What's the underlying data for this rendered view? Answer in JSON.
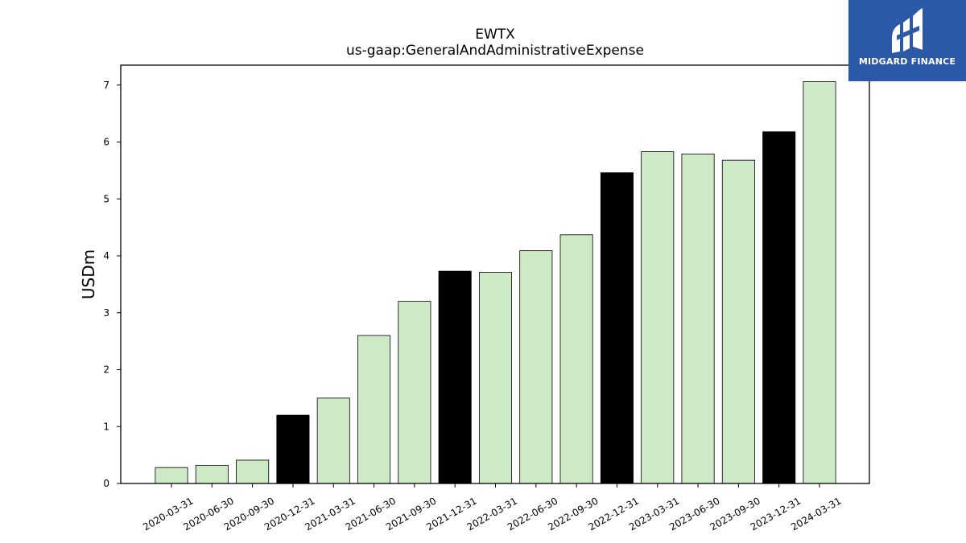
{
  "chart_data": {
    "type": "bar",
    "title": "EWTX",
    "subtitle": "us-gaap:GeneralAndAdministrativeExpense",
    "xlabel": "",
    "ylabel": "USDm",
    "ylim": [
      0,
      7.35
    ],
    "yticks": [
      0,
      1,
      2,
      3,
      4,
      5,
      6,
      7
    ],
    "grid": false,
    "categories": [
      "2020-03-31",
      "2020-06-30",
      "2020-09-30",
      "2020-12-31",
      "2021-03-31",
      "2021-06-30",
      "2021-09-30",
      "2021-12-31",
      "2022-03-31",
      "2022-06-30",
      "2022-09-30",
      "2022-12-31",
      "2023-03-31",
      "2023-06-30",
      "2023-09-30",
      "2023-12-31",
      "2024-03-31"
    ],
    "values": [
      0.28,
      0.32,
      0.41,
      1.2,
      1.5,
      2.6,
      3.2,
      3.73,
      3.71,
      4.09,
      4.37,
      5.46,
      5.83,
      5.79,
      5.68,
      6.18,
      7.06
    ],
    "bar_colors": [
      "#cde9c6",
      "#cde9c6",
      "#cde9c6",
      "#000000",
      "#cde9c6",
      "#cde9c6",
      "#cde9c6",
      "#000000",
      "#cde9c6",
      "#cde9c6",
      "#cde9c6",
      "#000000",
      "#cde9c6",
      "#cde9c6",
      "#cde9c6",
      "#000000",
      "#cde9c6"
    ]
  },
  "logo": {
    "text": "MIDGARD FINANCE",
    "background": "#2c58a8"
  }
}
